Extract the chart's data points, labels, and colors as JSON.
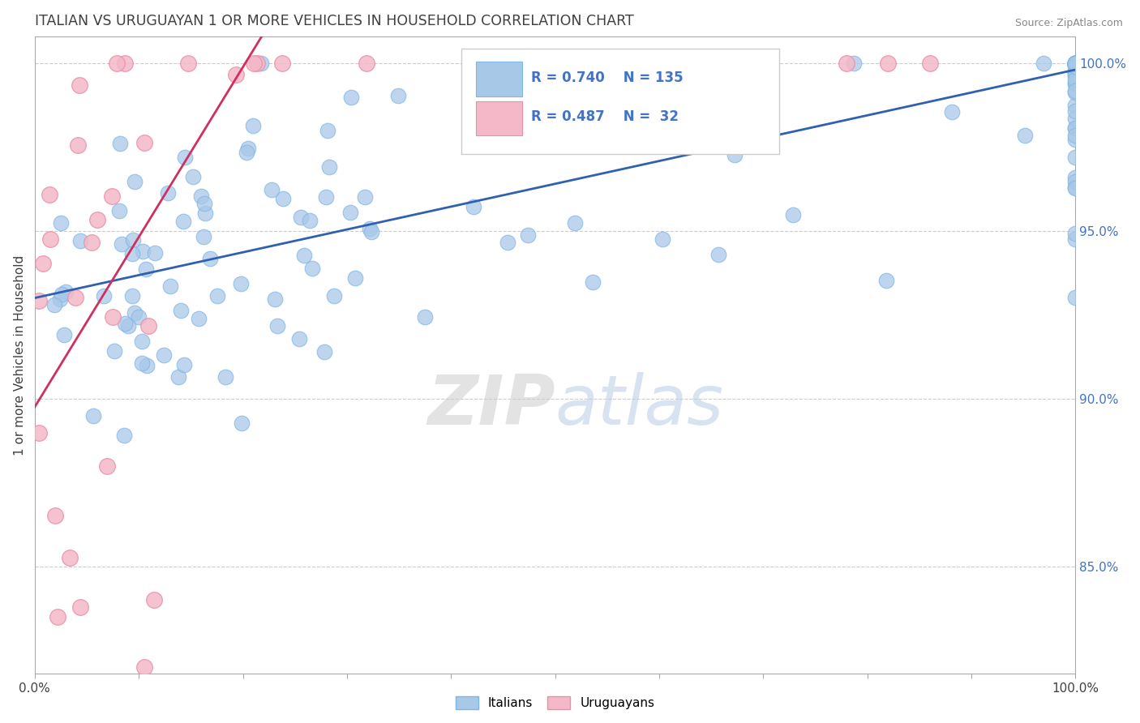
{
  "title": "ITALIAN VS URUGUAYAN 1 OR MORE VEHICLES IN HOUSEHOLD CORRELATION CHART",
  "source": "Source: ZipAtlas.com",
  "ylabel": "1 or more Vehicles in Household",
  "watermark_zip": "ZIP",
  "watermark_atlas": "atlas",
  "legend_italian": {
    "label": "Italians",
    "R": 0.74,
    "N": 135,
    "color": "#A8C8E8",
    "edge": "#7EB6E8"
  },
  "legend_uruguayan": {
    "label": "Uruguayans",
    "R": 0.487,
    "N": 32,
    "color": "#F4B8C8",
    "edge": "#E890A8"
  },
  "xmin": 0.0,
  "xmax": 1.0,
  "ymin": 0.818,
  "ymax": 1.008,
  "yticks": [
    0.85,
    0.9,
    0.95,
    1.0
  ],
  "ytick_labels": [
    "85.0%",
    "90.0%",
    "95.0%",
    "100.0%"
  ],
  "blue_scatter_color": "#A8C8E8",
  "blue_edge_color": "#7EB6E8",
  "pink_scatter_color": "#F4B8C8",
  "pink_edge_color": "#E890A8",
  "blue_line_color": "#3060B0",
  "pink_line_color": "#D03060",
  "background_color": "#FFFFFF",
  "title_color": "#404040",
  "axis_label_color": "#404040",
  "tick_color": "#404040",
  "grid_color": "#CCCCCC",
  "blue_intercept": 0.93,
  "blue_slope": 0.068,
  "pink_intercept": 0.92,
  "pink_slope": 0.45
}
